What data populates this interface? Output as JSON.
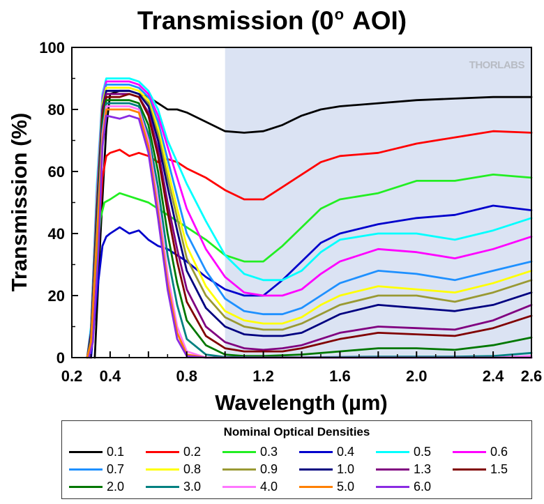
{
  "chart_data": {
    "type": "line",
    "title_main": "Transmission (0",
    "title_sup": "o",
    "title_end": " AOI)",
    "xlabel": "Wavelength (µm)",
    "ylabel": "Transmission (%)",
    "xlim": [
      0.2,
      2.6
    ],
    "ylim": [
      0,
      100
    ],
    "xticks": [
      "0.2",
      "0.4",
      "0.8",
      "1.2",
      "1.6",
      "2.0",
      "2.4",
      "2.6"
    ],
    "xtick_values": [
      0.2,
      0.4,
      0.8,
      1.2,
      1.6,
      2.0,
      2.4,
      2.6
    ],
    "yticks": [
      "0",
      "20",
      "40",
      "60",
      "80",
      "100"
    ],
    "ytick_values": [
      0,
      20,
      40,
      60,
      80,
      100
    ],
    "shaded_region": [
      1.0,
      2.6
    ],
    "shade_color": "#dbe3f3",
    "watermark": "THORLABS",
    "legend_title": "Nominal Optical Densities",
    "legend_position": "bottom",
    "series": [
      {
        "name": "0.1",
        "color": "#000000",
        "x": [
          0.32,
          0.35,
          0.38,
          0.4,
          0.45,
          0.5,
          0.55,
          0.6,
          0.65,
          0.7,
          0.75,
          0.8,
          0.9,
          1.0,
          1.1,
          1.2,
          1.3,
          1.4,
          1.5,
          1.6,
          1.8,
          2.0,
          2.2,
          2.4,
          2.6
        ],
        "y": [
          0,
          40,
          74,
          85,
          86,
          86,
          85,
          84,
          82,
          80,
          80,
          79,
          76,
          73,
          72.5,
          73,
          75,
          78,
          80,
          81,
          82,
          83,
          83.5,
          84,
          84
        ]
      },
      {
        "name": "0.2",
        "color": "#ff0000",
        "x": [
          0.3,
          0.33,
          0.36,
          0.38,
          0.4,
          0.45,
          0.5,
          0.55,
          0.6,
          0.65,
          0.7,
          0.75,
          0.8,
          0.9,
          1.0,
          1.1,
          1.2,
          1.3,
          1.4,
          1.5,
          1.6,
          1.8,
          2.0,
          2.2,
          2.4,
          2.6
        ],
        "y": [
          0,
          30,
          58,
          65,
          66,
          67,
          65,
          66,
          65,
          63,
          64,
          63,
          61,
          58,
          54,
          51,
          51,
          55,
          59,
          63,
          65,
          66,
          69,
          71,
          73,
          72.5
        ]
      },
      {
        "name": "0.3",
        "color": "#22ee22",
        "x": [
          0.29,
          0.32,
          0.35,
          0.37,
          0.4,
          0.45,
          0.5,
          0.55,
          0.6,
          0.65,
          0.7,
          0.75,
          0.8,
          0.9,
          1.0,
          1.1,
          1.2,
          1.3,
          1.4,
          1.5,
          1.6,
          1.8,
          2.0,
          2.2,
          2.4,
          2.6
        ],
        "y": [
          0,
          25,
          45,
          50,
          51,
          53,
          52,
          51,
          50,
          48,
          46,
          44,
          42,
          38,
          33,
          31,
          31,
          36,
          42,
          48,
          51,
          53,
          57,
          57,
          59,
          58
        ]
      },
      {
        "name": "0.4",
        "color": "#0000cc",
        "x": [
          0.3,
          0.33,
          0.36,
          0.38,
          0.4,
          0.45,
          0.5,
          0.55,
          0.6,
          0.65,
          0.7,
          0.75,
          0.8,
          0.9,
          1.0,
          1.1,
          1.2,
          1.3,
          1.4,
          1.5,
          1.6,
          1.8,
          2.0,
          2.2,
          2.4,
          2.6
        ],
        "y": [
          0,
          20,
          36,
          39,
          40,
          42,
          40,
          41,
          38,
          36,
          35,
          33,
          31,
          26,
          22,
          20,
          20,
          25,
          31,
          37,
          40,
          43,
          45,
          46,
          49,
          47.5
        ]
      },
      {
        "name": "0.5",
        "color": "#00ffff",
        "x": [
          0.28,
          0.3,
          0.33,
          0.36,
          0.38,
          0.45,
          0.5,
          0.55,
          0.6,
          0.65,
          0.7,
          0.75,
          0.8,
          0.9,
          1.0,
          1.1,
          1.2,
          1.3,
          1.4,
          1.5,
          1.6,
          1.8,
          2.0,
          2.2,
          2.4,
          2.6
        ],
        "y": [
          0,
          10,
          55,
          85,
          90,
          90,
          90,
          89,
          86,
          80,
          70,
          63,
          56,
          44,
          33,
          27,
          25,
          25,
          28,
          34,
          38,
          40,
          40,
          38,
          41,
          45
        ]
      },
      {
        "name": "0.6",
        "color": "#ff00ff",
        "x": [
          0.28,
          0.3,
          0.33,
          0.36,
          0.38,
          0.45,
          0.5,
          0.55,
          0.6,
          0.65,
          0.7,
          0.75,
          0.8,
          0.9,
          1.0,
          1.1,
          1.2,
          1.3,
          1.4,
          1.5,
          1.6,
          1.8,
          2.0,
          2.2,
          2.4,
          2.6
        ],
        "y": [
          0,
          9,
          52,
          84,
          89,
          89,
          89,
          88,
          85,
          78,
          68,
          58,
          48,
          35,
          26,
          21,
          20,
          20,
          22,
          27,
          31,
          35,
          34,
          32,
          35,
          39
        ]
      },
      {
        "name": "0.7",
        "color": "#1e90ff",
        "x": [
          0.28,
          0.3,
          0.33,
          0.36,
          0.38,
          0.45,
          0.5,
          0.55,
          0.6,
          0.65,
          0.7,
          0.75,
          0.8,
          0.9,
          1.0,
          1.1,
          1.2,
          1.3,
          1.4,
          1.5,
          1.6,
          1.8,
          2.0,
          2.2,
          2.4,
          2.6
        ],
        "y": [
          0,
          9,
          50,
          83,
          88,
          88,
          88,
          87,
          84,
          76,
          64,
          52,
          40,
          28,
          19,
          15,
          14,
          14,
          16,
          20,
          24,
          28,
          27,
          25,
          28,
          31
        ]
      },
      {
        "name": "0.8",
        "color": "#ffff00",
        "x": [
          0.28,
          0.3,
          0.33,
          0.36,
          0.38,
          0.45,
          0.5,
          0.55,
          0.6,
          0.65,
          0.7,
          0.75,
          0.8,
          0.9,
          1.0,
          1.1,
          1.2,
          1.3,
          1.4,
          1.5,
          1.6,
          1.8,
          2.0,
          2.2,
          2.4,
          2.6
        ],
        "y": [
          0,
          8,
          49,
          82,
          87,
          87,
          87,
          86,
          83,
          74,
          61,
          48,
          36,
          23,
          15,
          12,
          11,
          11,
          13,
          17,
          20,
          23,
          22,
          21,
          24,
          28
        ]
      },
      {
        "name": "0.9",
        "color": "#999933",
        "x": [
          0.28,
          0.3,
          0.33,
          0.36,
          0.38,
          0.45,
          0.5,
          0.55,
          0.6,
          0.65,
          0.7,
          0.75,
          0.8,
          0.9,
          1.0,
          1.1,
          1.2,
          1.3,
          1.4,
          1.5,
          1.6,
          1.8,
          2.0,
          2.2,
          2.4,
          2.6
        ],
        "y": [
          0,
          8,
          48,
          81,
          86,
          86,
          86,
          85,
          82,
          72,
          58,
          45,
          32,
          20,
          13,
          10,
          9,
          9,
          11,
          14,
          17,
          20,
          20,
          18,
          21,
          25
        ]
      },
      {
        "name": "1.0",
        "color": "#000080",
        "x": [
          0.28,
          0.3,
          0.33,
          0.36,
          0.38,
          0.45,
          0.5,
          0.55,
          0.6,
          0.65,
          0.7,
          0.75,
          0.8,
          0.9,
          1.0,
          1.1,
          1.2,
          1.3,
          1.4,
          1.5,
          1.6,
          1.8,
          2.0,
          2.2,
          2.4,
          2.6
        ],
        "y": [
          0,
          8,
          47,
          80,
          86,
          86,
          86,
          85,
          81,
          70,
          55,
          41,
          28,
          16,
          10,
          7.5,
          7,
          7,
          8,
          11,
          14,
          17,
          16,
          15,
          17,
          21
        ]
      },
      {
        "name": "1.3",
        "color": "#800080",
        "x": [
          0.28,
          0.3,
          0.33,
          0.36,
          0.38,
          0.45,
          0.5,
          0.55,
          0.6,
          0.65,
          0.7,
          0.75,
          0.8,
          0.9,
          1.0,
          1.1,
          1.2,
          1.3,
          1.4,
          1.5,
          1.6,
          1.8,
          2.0,
          2.2,
          2.4,
          2.6
        ],
        "y": [
          0,
          7,
          45,
          79,
          85,
          85,
          85,
          84,
          79,
          67,
          50,
          35,
          22,
          10,
          5,
          3,
          2.5,
          3,
          4,
          6,
          8,
          10,
          9.5,
          9,
          12,
          17
        ]
      },
      {
        "name": "1.5",
        "color": "#800000",
        "x": [
          0.28,
          0.3,
          0.33,
          0.36,
          0.38,
          0.45,
          0.5,
          0.55,
          0.6,
          0.65,
          0.7,
          0.75,
          0.8,
          0.9,
          1.0,
          1.1,
          1.2,
          1.3,
          1.4,
          1.5,
          1.6,
          1.8,
          2.0,
          2.2,
          2.4,
          2.6
        ],
        "y": [
          0,
          7,
          44,
          78,
          84,
          84,
          85,
          84,
          78,
          65,
          47,
          31,
          18,
          7,
          3,
          2,
          2,
          2,
          3,
          4.5,
          6,
          8,
          7.5,
          7,
          9.5,
          13.5
        ]
      },
      {
        "name": "2.0",
        "color": "#007700",
        "x": [
          0.28,
          0.3,
          0.33,
          0.36,
          0.38,
          0.45,
          0.5,
          0.55,
          0.6,
          0.65,
          0.7,
          0.75,
          0.8,
          0.9,
          1.0,
          1.1,
          1.2,
          1.4,
          1.6,
          1.8,
          2.0,
          2.2,
          2.4,
          2.6
        ],
        "y": [
          0,
          6,
          42,
          76,
          83,
          83,
          83,
          82,
          75,
          60,
          40,
          24,
          12,
          4,
          1,
          0.5,
          0.5,
          1,
          2,
          3,
          3,
          2.5,
          4,
          6.5
        ]
      },
      {
        "name": "3.0",
        "color": "#008080",
        "x": [
          0.28,
          0.3,
          0.33,
          0.36,
          0.38,
          0.45,
          0.5,
          0.55,
          0.6,
          0.65,
          0.7,
          0.75,
          0.8,
          0.9,
          1.0,
          1.2,
          1.4,
          1.6,
          1.8,
          2.0,
          2.2,
          2.4,
          2.6
        ],
        "y": [
          0,
          6,
          40,
          74,
          82,
          82,
          82,
          81,
          72,
          55,
          33,
          17,
          6,
          1,
          0.2,
          0.1,
          0.1,
          0.2,
          0.3,
          0.3,
          0.3,
          0.5,
          1.5
        ]
      },
      {
        "name": "4.0",
        "color": "#ff77ff",
        "x": [
          0.28,
          0.3,
          0.33,
          0.36,
          0.38,
          0.45,
          0.5,
          0.55,
          0.6,
          0.65,
          0.7,
          0.75,
          0.8,
          0.9,
          1.2,
          1.6,
          2.0,
          2.4,
          2.6
        ],
        "y": [
          0,
          5,
          38,
          72,
          81,
          81,
          81,
          80,
          70,
          50,
          27,
          10,
          2,
          0,
          0,
          0,
          0,
          0,
          0.5
        ]
      },
      {
        "name": "5.0",
        "color": "#ff8000",
        "x": [
          0.28,
          0.3,
          0.33,
          0.36,
          0.38,
          0.45,
          0.5,
          0.55,
          0.6,
          0.65,
          0.7,
          0.75,
          0.8,
          0.9,
          1.2,
          1.6,
          2.0,
          2.4,
          2.6
        ],
        "y": [
          0,
          5,
          37,
          70,
          80,
          80,
          80,
          79,
          68,
          47,
          24,
          8,
          1,
          0,
          0,
          0,
          0,
          0,
          0
        ]
      },
      {
        "name": "6.0",
        "color": "#8a2be2",
        "x": [
          0.29,
          0.31,
          0.34,
          0.36,
          0.38,
          0.45,
          0.5,
          0.55,
          0.6,
          0.65,
          0.7,
          0.75,
          0.8,
          0.9,
          1.2,
          1.6,
          2.0,
          2.4,
          2.6
        ],
        "y": [
          0,
          5,
          35,
          68,
          78,
          77,
          78,
          77,
          66,
          45,
          22,
          6,
          0.5,
          0,
          0,
          0,
          0,
          0,
          0
        ]
      }
    ]
  }
}
